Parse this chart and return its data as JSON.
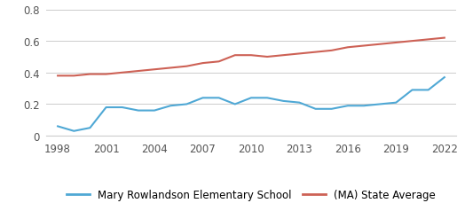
{
  "school_years": [
    1998,
    1999,
    2000,
    2001,
    2002,
    2003,
    2004,
    2005,
    2006,
    2007,
    2008,
    2009,
    2010,
    2011,
    2012,
    2013,
    2014,
    2015,
    2016,
    2017,
    2018,
    2019,
    2020,
    2021,
    2022
  ],
  "school_values": [
    0.06,
    0.03,
    0.05,
    0.18,
    0.18,
    0.16,
    0.16,
    0.19,
    0.2,
    0.24,
    0.24,
    0.2,
    0.24,
    0.24,
    0.22,
    0.21,
    0.17,
    0.17,
    0.19,
    0.19,
    0.2,
    0.21,
    0.29,
    0.29,
    0.37
  ],
  "state_years": [
    1998,
    1999,
    2000,
    2001,
    2002,
    2003,
    2004,
    2005,
    2006,
    2007,
    2008,
    2009,
    2010,
    2011,
    2012,
    2013,
    2014,
    2015,
    2016,
    2017,
    2018,
    2019,
    2020,
    2021,
    2022
  ],
  "state_values": [
    0.38,
    0.38,
    0.39,
    0.39,
    0.4,
    0.41,
    0.42,
    0.43,
    0.44,
    0.46,
    0.47,
    0.51,
    0.51,
    0.5,
    0.51,
    0.52,
    0.53,
    0.54,
    0.56,
    0.57,
    0.58,
    0.59,
    0.6,
    0.61,
    0.62
  ],
  "school_color": "#4fa8d5",
  "state_color": "#cd6155",
  "ylim": [
    0,
    0.8
  ],
  "yticks": [
    0,
    0.2,
    0.4,
    0.6,
    0.8
  ],
  "xticks": [
    1998,
    2001,
    2004,
    2007,
    2010,
    2013,
    2016,
    2019,
    2022
  ],
  "school_label": "Mary Rowlandson Elementary School",
  "state_label": "(MA) State Average",
  "line_width": 1.5,
  "bg_color": "#ffffff",
  "grid_color": "#cccccc",
  "tick_color": "#555555",
  "tick_fontsize": 8.5
}
